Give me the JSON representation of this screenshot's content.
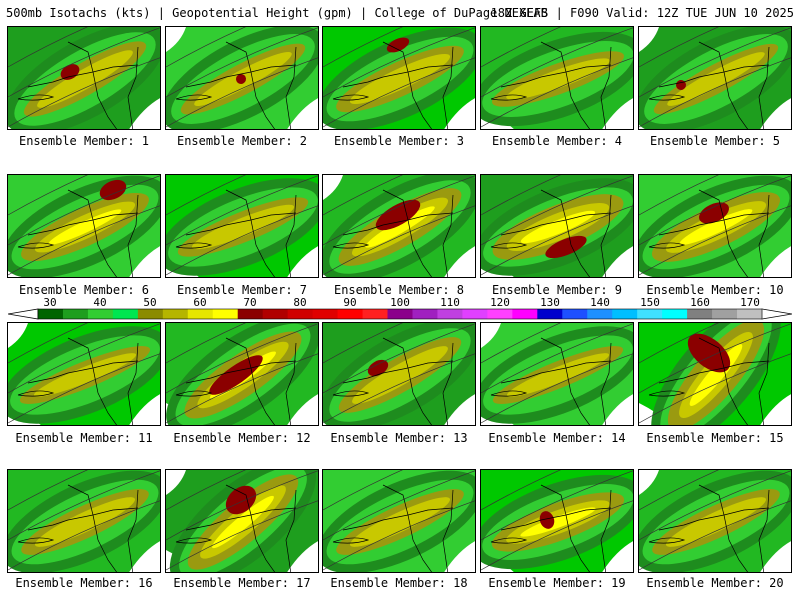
{
  "header": {
    "left": "500mb Isotachs (kts) | Geopotential Height (gpm) | College of DuPage NEXLAB",
    "right": "18Z GEFS | F090 Valid: 12Z TUE JUN 10 2025"
  },
  "panel_label_prefix": "Ensemble Member:",
  "members": [
    {
      "label": "Ensemble Member: 1"
    },
    {
      "label": "Ensemble Member: 2"
    },
    {
      "label": "Ensemble Member: 3"
    },
    {
      "label": "Ensemble Member: 4"
    },
    {
      "label": "Ensemble Member: 5"
    },
    {
      "label": "Ensemble Member: 6"
    },
    {
      "label": "Ensemble Member: 7"
    },
    {
      "label": "Ensemble Member: 8"
    },
    {
      "label": "Ensemble Member: 9"
    },
    {
      "label": "Ensemble Member: 10"
    },
    {
      "label": "Ensemble Member: 11"
    },
    {
      "label": "Ensemble Member: 12"
    },
    {
      "label": "Ensemble Member: 13"
    },
    {
      "label": "Ensemble Member: 14"
    },
    {
      "label": "Ensemble Member: 15"
    },
    {
      "label": "Ensemble Member: 16"
    },
    {
      "label": "Ensemble Member: 17"
    },
    {
      "label": "Ensemble Member: 18"
    },
    {
      "label": "Ensemble Member: 19"
    },
    {
      "label": "Ensemble Member: 20"
    }
  ],
  "colorbar": {
    "labels": [
      "30",
      "40",
      "50",
      "60",
      "70",
      "80",
      "90",
      "100",
      "110",
      "120",
      "130",
      "140",
      "150",
      "160",
      "170"
    ],
    "colors": [
      "#006400",
      "#1e9e1e",
      "#32cd32",
      "#00e650",
      "#8b8b00",
      "#b5b500",
      "#e6e600",
      "#ffff00",
      "#8b0000",
      "#b00000",
      "#d00000",
      "#e00000",
      "#ff0000",
      "#ff2020",
      "#8b008b",
      "#a020c0",
      "#c040e0",
      "#e040ff",
      "#ff40ff",
      "#ff00ff",
      "#0000cd",
      "#1e50ff",
      "#1e90ff",
      "#00bfff",
      "#40e0ff",
      "#00ffff",
      "#808080",
      "#a0a0a0",
      "#c0c0c0"
    ]
  }
}
